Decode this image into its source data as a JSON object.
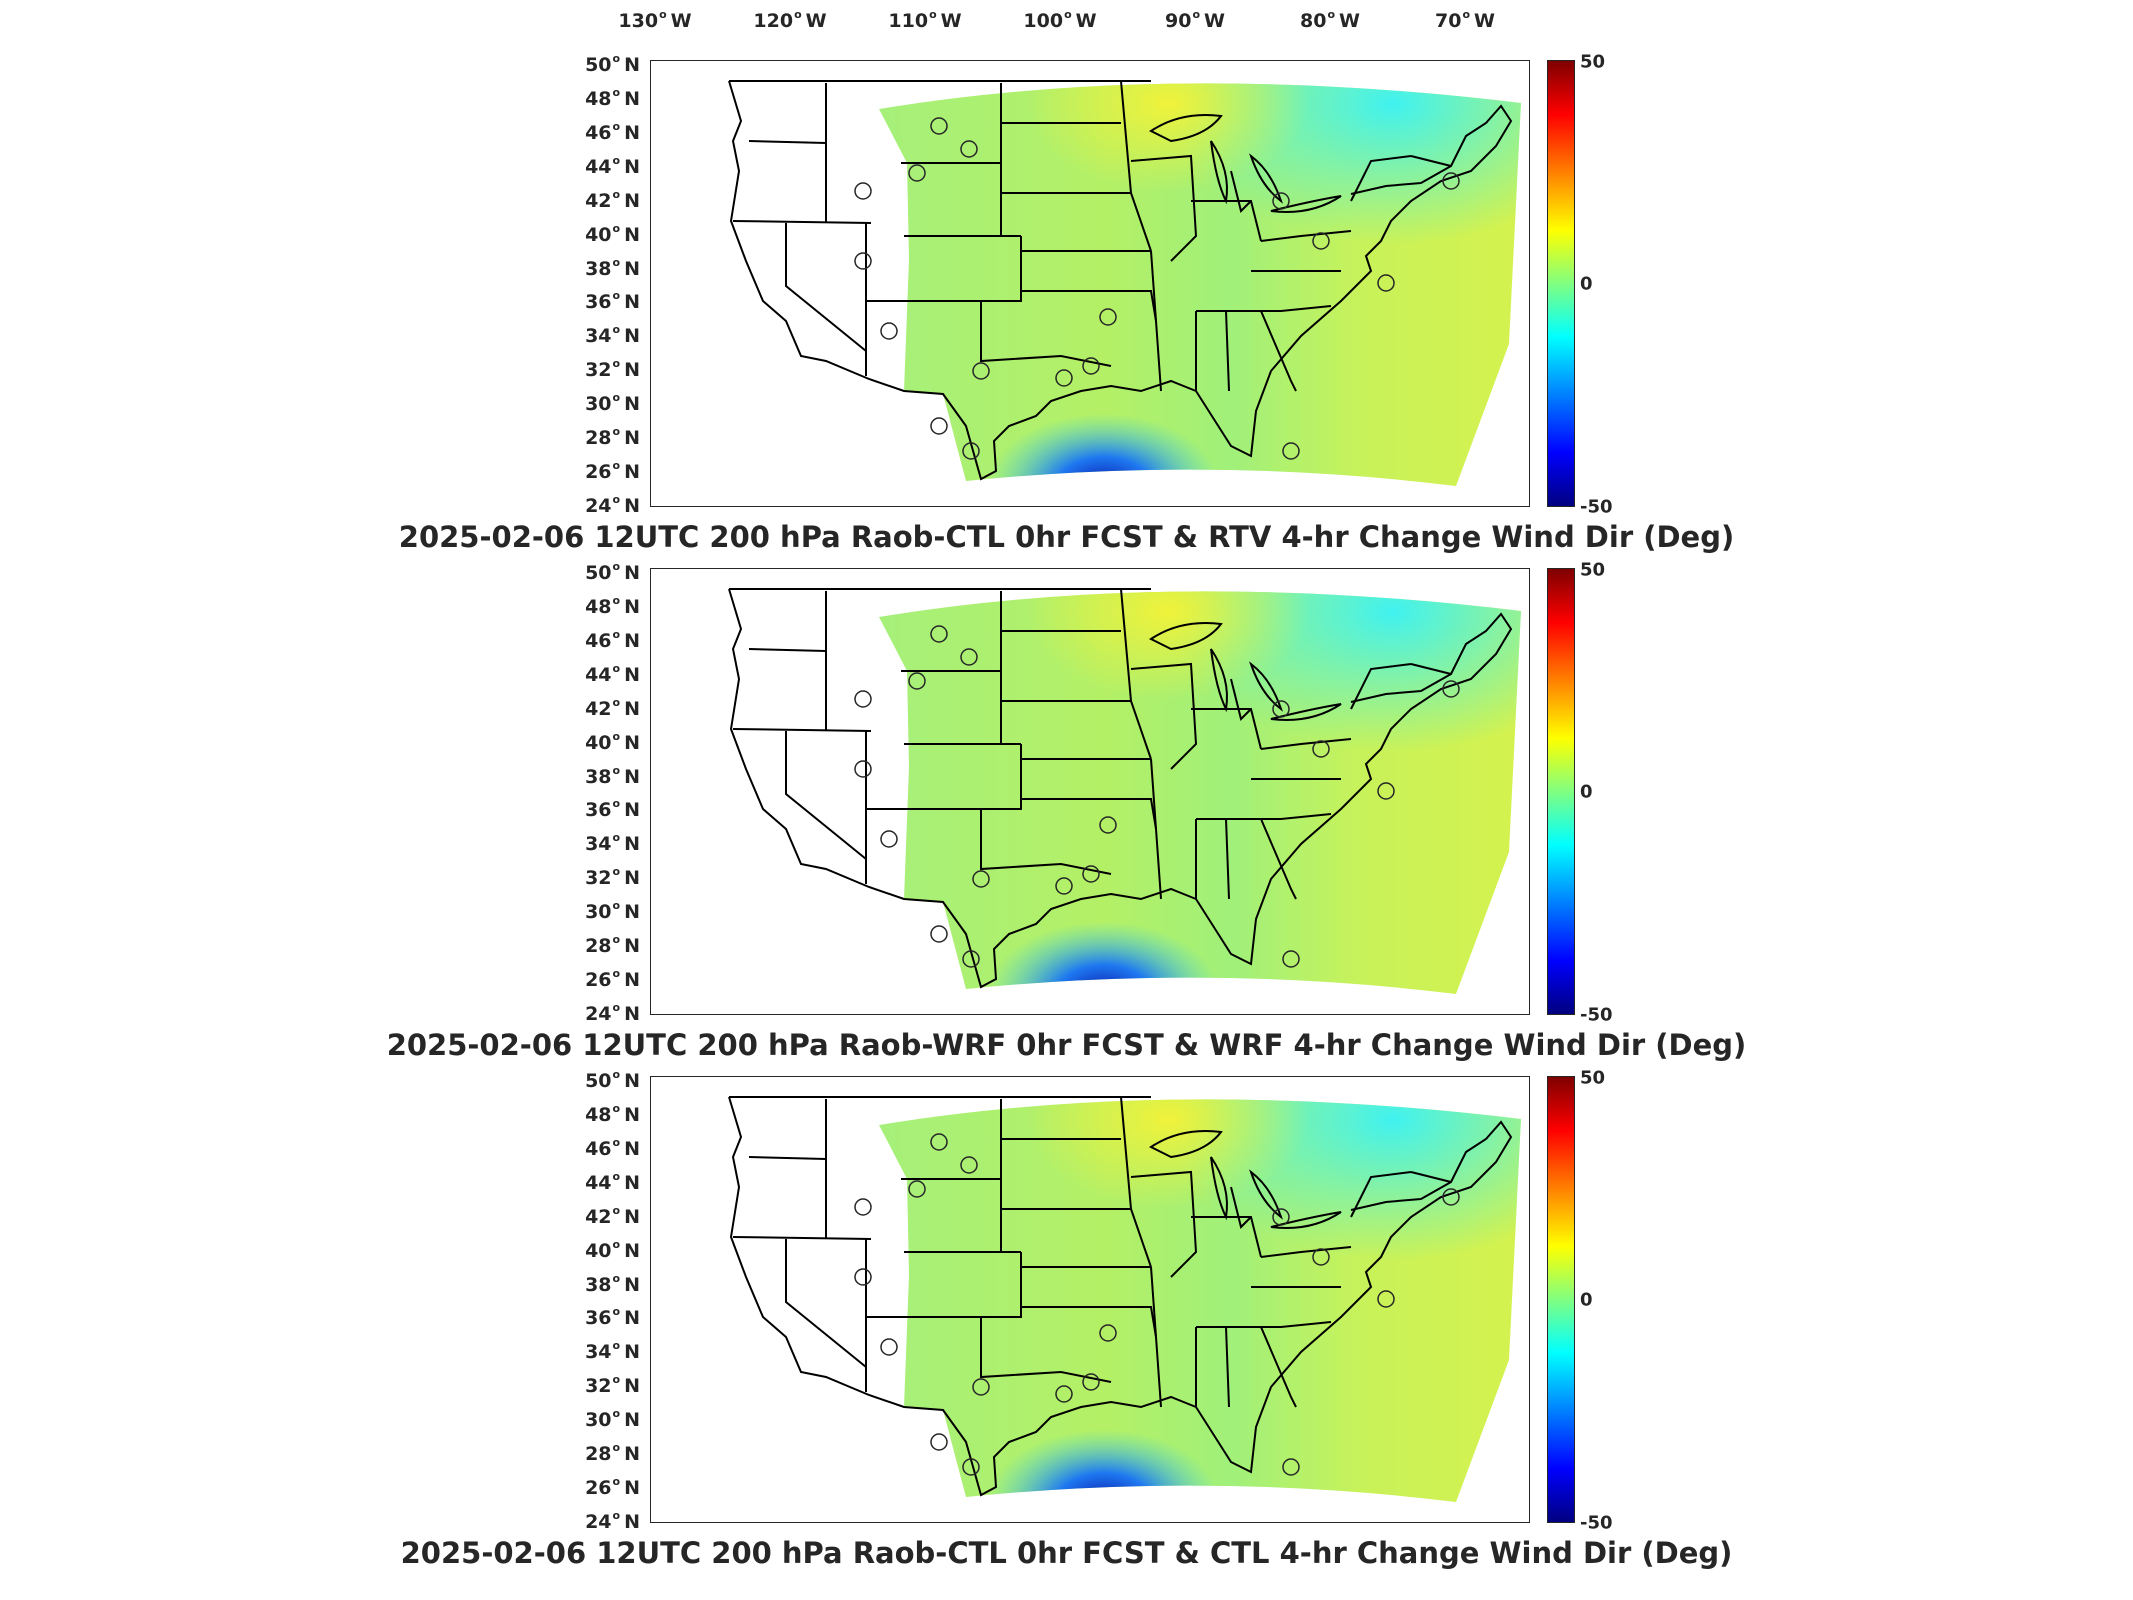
{
  "longitude_labels": [
    {
      "deg": "130",
      "hemi": "W"
    },
    {
      "deg": "120",
      "hemi": "W"
    },
    {
      "deg": "110",
      "hemi": "W"
    },
    {
      "deg": "100",
      "hemi": "W"
    },
    {
      "deg": "90",
      "hemi": "W"
    },
    {
      "deg": "80",
      "hemi": "W"
    },
    {
      "deg": "70",
      "hemi": "W"
    }
  ],
  "latitude_labels": [
    {
      "deg": "50",
      "hemi": "N"
    },
    {
      "deg": "48",
      "hemi": "N"
    },
    {
      "deg": "46",
      "hemi": "N"
    },
    {
      "deg": "44",
      "hemi": "N"
    },
    {
      "deg": "42",
      "hemi": "N"
    },
    {
      "deg": "40",
      "hemi": "N"
    },
    {
      "deg": "38",
      "hemi": "N"
    },
    {
      "deg": "36",
      "hemi": "N"
    },
    {
      "deg": "34",
      "hemi": "N"
    },
    {
      "deg": "32",
      "hemi": "N"
    },
    {
      "deg": "30",
      "hemi": "N"
    },
    {
      "deg": "28",
      "hemi": "N"
    },
    {
      "deg": "26",
      "hemi": "N"
    },
    {
      "deg": "24",
      "hemi": "N"
    }
  ],
  "colorbar": {
    "max": "50",
    "mid": "0",
    "min": "-50"
  },
  "panels": [
    {
      "title": "2025-02-06 12UTC 200 hPa Raob-CTL 0hr FCST & RTV 4-hr Change Wind Dir (Deg)"
    },
    {
      "title": "2025-02-06 12UTC 200 hPa Raob-WRF 0hr FCST & WRF 4-hr Change Wind Dir (Deg)"
    },
    {
      "title": "2025-02-06 12UTC 200 hPa Raob-CTL 0hr FCST & CTL 4-hr Change Wind Dir (Deg)"
    }
  ],
  "colors": {
    "field_green": "#9ef07a",
    "field_yellow": "#e6f24a",
    "field_cyan": "#40f2e6",
    "field_blue": "#0a1ab0",
    "boundary": "#000000"
  }
}
